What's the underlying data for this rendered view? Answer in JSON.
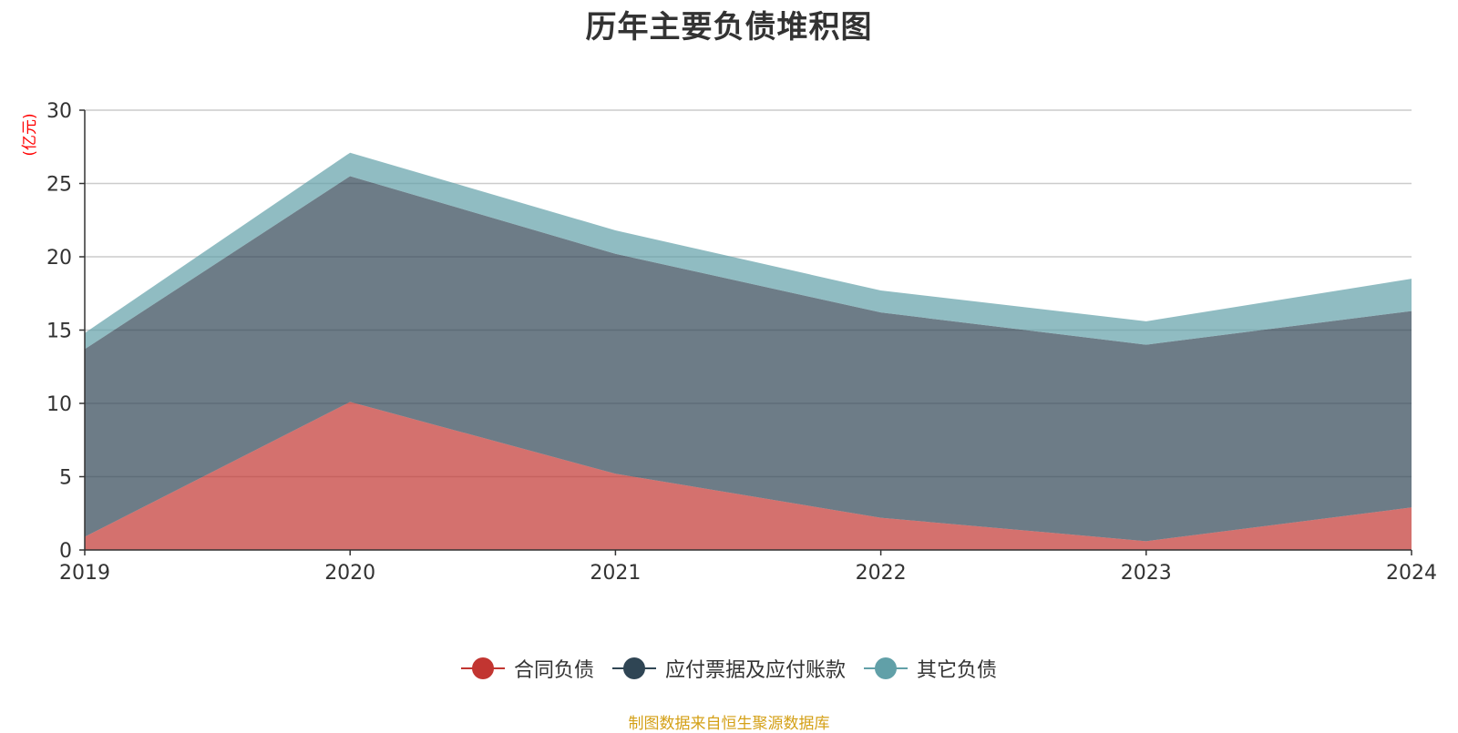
{
  "chart_data": {
    "type": "area",
    "stacked": true,
    "title": "历年主要负债堆积图",
    "ylabel": "(亿元)",
    "xlabel": "",
    "ylim": [
      0,
      30
    ],
    "yticks": [
      0,
      5,
      10,
      15,
      20,
      25,
      30
    ],
    "categories": [
      "2019",
      "2020",
      "2021",
      "2022",
      "2023",
      "2024"
    ],
    "series": [
      {
        "name": "合同负债",
        "color": "#c23531",
        "values": [
          0.9,
          10.1,
          5.2,
          2.2,
          0.6,
          2.9
        ]
      },
      {
        "name": "应付票据及应付账款",
        "color": "#2f4554",
        "values": [
          12.8,
          15.4,
          15.0,
          14.0,
          13.4,
          13.4
        ]
      },
      {
        "name": "其它负债",
        "color": "#61a0a8",
        "values": [
          1.1,
          1.6,
          1.6,
          1.5,
          1.6,
          2.2
        ]
      }
    ],
    "legend_position": "bottom-center",
    "grid": true,
    "source_note": "制图数据来自恒生聚源数据库"
  }
}
